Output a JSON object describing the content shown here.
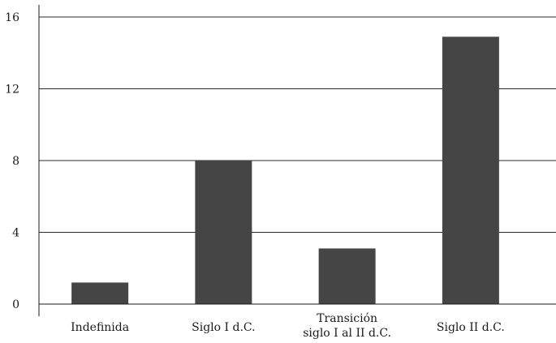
{
  "chart_data": {
    "type": "bar",
    "categories": [
      [
        "Indefinida"
      ],
      [
        "Siglo I d.C."
      ],
      [
        "Transición",
        "siglo I al II d.C."
      ],
      [
        "Siglo II d.C."
      ]
    ],
    "values": [
      1.2,
      8,
      3.1,
      14.9
    ],
    "yticks": [
      "0",
      "4",
      "8",
      "12",
      "16"
    ],
    "ylim": [
      0,
      16
    ],
    "grid": true,
    "title": "",
    "xlabel": "",
    "ylabel": "",
    "bar_color": "#454545",
    "grid_color": "#2b2b2b"
  }
}
